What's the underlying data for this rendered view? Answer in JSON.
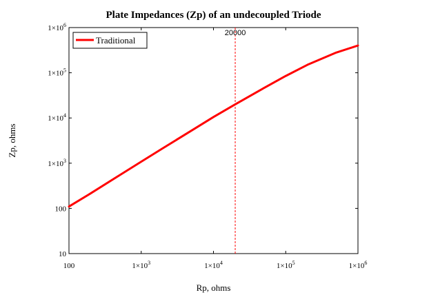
{
  "chart_data": {
    "type": "line",
    "title": "Plate Impedances (Zp) of an undecoupled Triode",
    "xlabel": "Rp, ohms",
    "ylabel": "Zp, ohms",
    "x_scale": "log",
    "y_scale": "log",
    "xlim": [
      100,
      1000000
    ],
    "ylim": [
      10,
      1000000
    ],
    "grid": false,
    "legend_position": "top-left",
    "x_ticks": [
      {
        "value": 100,
        "label": "100"
      },
      {
        "value": 1000,
        "mant": "1×10",
        "exp": "3"
      },
      {
        "value": 10000,
        "mant": "1×10",
        "exp": "4"
      },
      {
        "value": 100000,
        "mant": "1×10",
        "exp": "5"
      },
      {
        "value": 1000000,
        "mant": "1×10",
        "exp": "6"
      }
    ],
    "y_ticks": [
      {
        "value": 10,
        "label": "10"
      },
      {
        "value": 100,
        "label": "100"
      },
      {
        "value": 1000,
        "mant": "1×10",
        "exp": "3"
      },
      {
        "value": 10000,
        "mant": "1×10",
        "exp": "4"
      },
      {
        "value": 100000,
        "mant": "1×10",
        "exp": "5"
      },
      {
        "value": 1000000,
        "mant": "1×10",
        "exp": "6"
      }
    ],
    "series": [
      {
        "name": "Traditional",
        "color": "#ff0000",
        "x": [
          100,
          200,
          500,
          1000,
          2000,
          5000,
          10000,
          20000,
          50000,
          100000,
          200000,
          500000,
          1000000
        ],
        "y": [
          110,
          215,
          540,
          1080,
          2150,
          5300,
          10500,
          20000,
          46000,
          85000,
          150000,
          280000,
          400000
        ]
      }
    ],
    "annotations": [
      {
        "type": "vline",
        "x": 20000,
        "label": "20000",
        "color": "#ff0000",
        "style": "dashed"
      }
    ]
  }
}
